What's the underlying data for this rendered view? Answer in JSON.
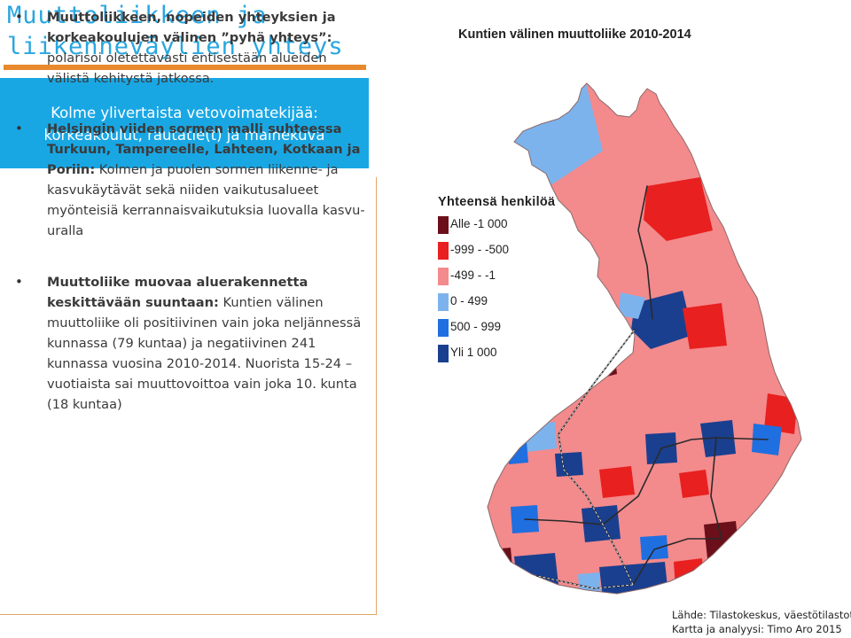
{
  "slide": {
    "title_line1": "Muuttoliikkeen ja",
    "title_line2": "liikenneväylien yhteys"
  },
  "highlight_box": {
    "line1": "Kolme ylivertaista vetovoimatekijää:",
    "line2": "korkeakoulut, rautatie(t) ja mainekuva"
  },
  "bullets": [
    {
      "lead": "Muuttoliikkeen, nopeiden yhteyksien ja korkeakoulujen välinen ”pyhä yhteys”:",
      "body": "polarisoi oletettavasti entisestään alueiden välistä kehitystä jatkossa."
    },
    {
      "lead": "Helsingin viiden sormen malli suhteessa Turkuun, Tampereelle, Lahteen, Kotkaan ja Poriin:",
      "body": "Kolmen ja puolen sormen liikenne- ja kasvukäytävät sekä niiden vaikutusalueet myönteisiä kerrannaisvaikutuksia luovalla kasvu-uralla"
    },
    {
      "lead": "Muuttoliike muovaa aluerakennetta keskittävään suuntaan:",
      "body": "Kuntien välinen muuttoliike oli positiivinen vain joka neljännessä kunnassa (79 kuntaa) ja negatiivinen 241 kunnassa vuosina 2010-2014. Nuorista 15-24 –vuotiaista sai muuttovoittoa vain joka 10. kunta (18 kuntaa)"
    }
  ],
  "map": {
    "title": "Kuntien välinen muuttoliike 2010-2014",
    "legend_title": "Yhteensä henkilöä",
    "legend": [
      {
        "label": "Alle -1 000",
        "color": "#6b0f1a"
      },
      {
        "label": "-999 - -500",
        "color": "#e8201f"
      },
      {
        "label": "-499 - -1",
        "color": "#f38a8c"
      },
      {
        "label": "0 - 499",
        "color": "#7db3ec"
      },
      {
        "label": "500 - 999",
        "color": "#1f6fe0"
      },
      {
        "label": "Yli 1 000",
        "color": "#1a3f8f"
      }
    ]
  },
  "source": {
    "line1": "Lähde: Tilastokeskus, väestötilastot",
    "line2": "Kartta ja analyysi: Timo Aro 2015"
  }
}
